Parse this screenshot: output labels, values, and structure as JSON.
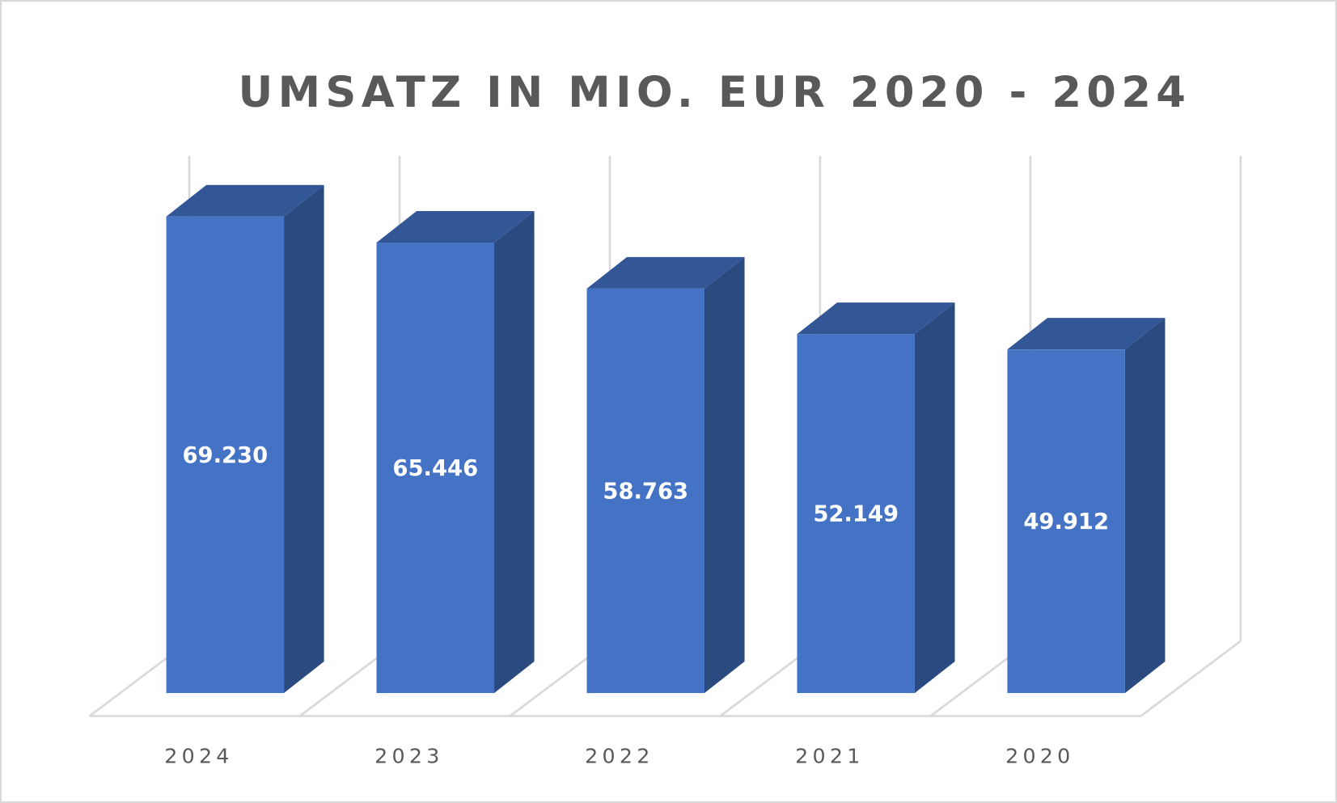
{
  "chart_data": {
    "type": "bar",
    "style": "3d-column",
    "title": "UMSATZ IN MIO. EUR 2020 - 2024",
    "categories": [
      "2024",
      "2023",
      "2022",
      "2021",
      "2020"
    ],
    "values": [
      69.23,
      65.446,
      58.763,
      52.149,
      49.912
    ],
    "data_labels": [
      "69.230",
      "65.446",
      "58.763",
      "52.149",
      "49.912"
    ],
    "xlabel": "",
    "ylabel": "",
    "ylim": [
      0,
      69.23
    ],
    "grid": true,
    "legend": "none",
    "colors": {
      "front": "#4472C4",
      "side": "#2A4A80",
      "top": "#335696",
      "grid": "#D9D9D9",
      "text": "#595959"
    }
  }
}
